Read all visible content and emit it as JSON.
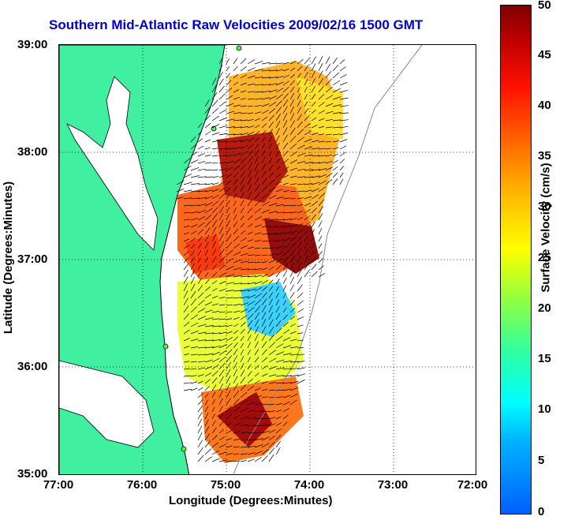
{
  "title": "Southern Mid-Atlantic Raw Velocities 2009/02/16 1500 GMT",
  "axes": {
    "x_label": "Longitude (Degrees:Minutes)",
    "y_label": "Latitude (Degrees:Minutes)",
    "x_ticks": [
      "77:00",
      "76:00",
      "75:00",
      "74:00",
      "73:00",
      "72:00"
    ],
    "y_ticks": [
      "39:00",
      "38:00",
      "37:00",
      "36:00",
      "35:00"
    ]
  },
  "colorbar": {
    "label": "Surface Velocity (cm/s)",
    "ticks": [
      "50",
      "45",
      "40",
      "35",
      "30",
      "25",
      "20",
      "15",
      "10",
      "5",
      "0"
    ],
    "min": 0,
    "max": 50
  },
  "colors": {
    "land": "#40f0a0",
    "title": "#0000cc",
    "stations": "#40ff40"
  }
}
